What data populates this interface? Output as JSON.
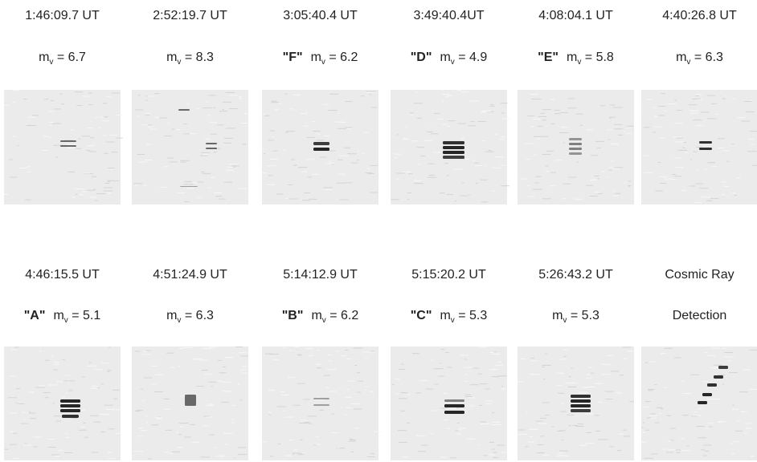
{
  "panels": [
    {
      "time": "1:46:09.7 UT",
      "mag": {
        "symbol": "m",
        "sub": "v",
        "value": "= 6.7"
      }
    },
    {
      "time": "2:52:19.7 UT",
      "mag": {
        "symbol": "m",
        "sub": "v",
        "value": "= 8.3"
      }
    },
    {
      "time": "3:05:40.4 UT",
      "tag": "\"F\"",
      "mag": {
        "symbol": "m",
        "sub": "v",
        "value": "= 6.2"
      }
    },
    {
      "time": "3:49:40.4UT",
      "tag": "\"D\"",
      "mag": {
        "symbol": "m",
        "sub": "v",
        "value": "= 4.9"
      }
    },
    {
      "time": "4:08:04.1 UT",
      "tag": "\"E\"",
      "mag": {
        "symbol": "m",
        "sub": "v",
        "value": "= 5.8"
      }
    },
    {
      "time": "4:40:26.8 UT",
      "mag": {
        "symbol": "m",
        "sub": "v",
        "value": "= 6.3"
      }
    },
    {
      "time": "4:46:15.5 UT",
      "tag": "\"A\"",
      "mag": {
        "symbol": "m",
        "sub": "v",
        "value": "= 5.1"
      }
    },
    {
      "time": "4:51:24.9 UT",
      "mag": {
        "symbol": "m",
        "sub": "v",
        "value": "= 6.3"
      }
    },
    {
      "time": "5:14:12.9 UT",
      "tag": "\"B\"",
      "mag": {
        "symbol": "m",
        "sub": "v",
        "value": "= 6.2"
      }
    },
    {
      "time": "5:15:20.2 UT",
      "tag": "\"C\"",
      "mag": {
        "symbol": "m",
        "sub": "v",
        "value": "= 5.3"
      }
    },
    {
      "time": "5:26:43.2 UT",
      "mag": {
        "symbol": "m",
        "sub": "v",
        "value": "= 5.3"
      }
    },
    {
      "time": "Cosmic Ray",
      "note": "Detection"
    }
  ]
}
